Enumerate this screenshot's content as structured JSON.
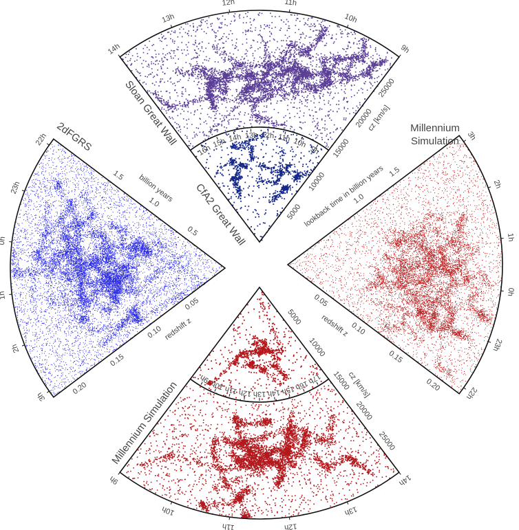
{
  "sloan": {
    "title": "Sloan Great Wall",
    "ra": [
      "14h",
      "13h",
      "12h",
      "11h",
      "10h",
      "9h"
    ],
    "cz": [
      "15000",
      "20000",
      "25000"
    ],
    "cz_title": "cz [km/s]"
  },
  "cfa2": {
    "title": "CfA2 Great Wall",
    "ra": [
      "16h",
      "15h",
      "14h",
      "13h",
      "12h",
      "11h",
      "10h",
      "9h"
    ],
    "cz": [
      "5000",
      "10000"
    ]
  },
  "twodf": {
    "title": "2dFGRS",
    "ra": [
      "22h",
      "23h",
      "0h",
      "1h",
      "2h",
      "3h"
    ],
    "redshift": [
      "0.05",
      "0.10",
      "0.15",
      "0.20"
    ],
    "redshift_title": "redshift z",
    "lookback": [
      "0.5",
      "1.0",
      "1.5"
    ],
    "lookback_title": "billion years"
  },
  "millennium_right": {
    "title": [
      "Millennium",
      "Simulation"
    ],
    "ra": [
      "3h",
      "2h",
      "1h",
      "0h",
      "23h",
      "22h"
    ],
    "redshift": [
      "0.05",
      "0.10",
      "0.15",
      "0.20"
    ],
    "redshift_title": "redshift z",
    "lookback": [
      "1.0",
      "1.5"
    ],
    "lookback_title": "lookback time in billion years"
  },
  "millennium_bottom_inner": {
    "ra": [
      "9h",
      "10h",
      "11h",
      "12h",
      "13h",
      "14h",
      "15h",
      "16h",
      "17h"
    ],
    "cz": [
      "5000",
      "10000"
    ]
  },
  "millennium_bottom": {
    "title": "Millennium Simulation",
    "ra": [
      "9h",
      "10h",
      "11h",
      "12h",
      "13h",
      "14h"
    ],
    "cz": [
      "15000",
      "20000",
      "25000"
    ],
    "cz_title": "cz [km/s]"
  }
}
